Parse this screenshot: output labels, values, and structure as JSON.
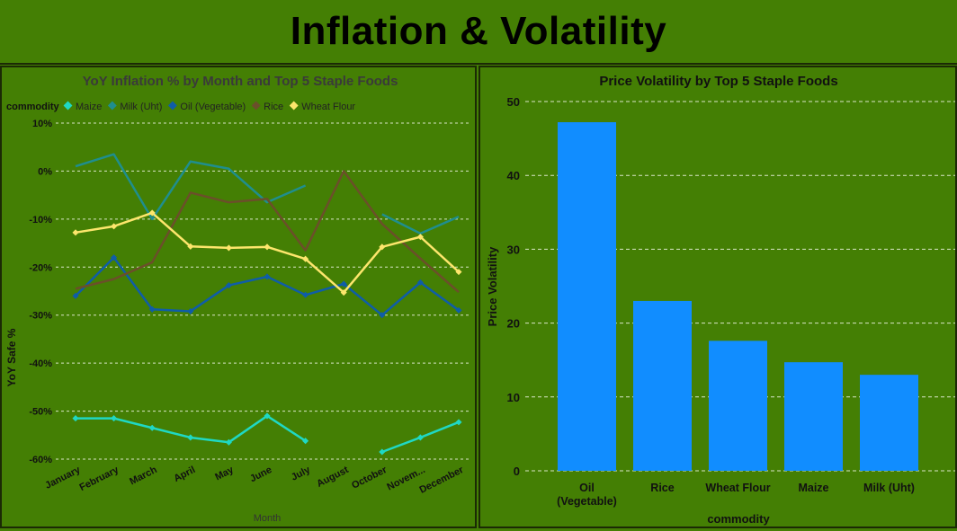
{
  "page_title": "Inflation & Volatility",
  "colors": {
    "background": "#447f04",
    "border": "#1b2a05",
    "bar": "#118dff",
    "grid": "#d8e6c6"
  },
  "chart_data": [
    {
      "type": "line",
      "title": "YoY Inflation % by Month and Top 5 Staple Foods",
      "xlabel": "Month",
      "ylabel": "YoY Safe %",
      "legend_title": "commodity",
      "legend_position": "top-left",
      "grid": true,
      "ylim": [
        -60,
        10
      ],
      "yticks": [
        10,
        0,
        -10,
        -20,
        -30,
        -40,
        -50,
        -60
      ],
      "ytick_labels": [
        "10%",
        "0%",
        "-10%",
        "-20%",
        "-30%",
        "-40%",
        "-50%",
        "-60%"
      ],
      "categories": [
        "January",
        "February",
        "March",
        "April",
        "May",
        "June",
        "July",
        "August",
        "October",
        "Novem...",
        "December"
      ],
      "series": [
        {
          "name": "Maize",
          "color": "#1fd8c4",
          "marker": true,
          "values": [
            -51.5,
            -51.5,
            -53.5,
            -55.5,
            -56.5,
            -51,
            -56.2,
            null,
            -58.5,
            -55.5,
            -52.3
          ]
        },
        {
          "name": "Milk (Uht)",
          "color": "#1f8e8e",
          "marker": false,
          "values": [
            1,
            3.5,
            -10,
            2,
            0.5,
            -6.5,
            -3,
            null,
            -9,
            -13,
            -9.5
          ]
        },
        {
          "name": "Oil (Vegetable)",
          "color": "#0f5da8",
          "marker": true,
          "values": [
            -26,
            -18,
            -28.8,
            -29.2,
            -23.8,
            -22,
            -25.8,
            -23.5,
            -30,
            -23.2,
            -29
          ]
        },
        {
          "name": "Rice",
          "color": "#6b4f2a",
          "marker": false,
          "values": [
            -24.5,
            -22.5,
            -19,
            -4.5,
            -6.5,
            -5.8,
            -16.5,
            0,
            -11,
            -18.2,
            -25.2
          ]
        },
        {
          "name": "Wheat Flour",
          "color": "#fde66c",
          "marker": true,
          "values": [
            -12.8,
            -11.5,
            -8.7,
            -15.7,
            -16,
            -15.8,
            -18.3,
            -25.3,
            -15.8,
            -13.7,
            -21
          ]
        }
      ]
    },
    {
      "type": "bar",
      "title": "Price Volatility by Top 5 Staple Foods",
      "xlabel": "commodity",
      "ylabel": "Price Volatility",
      "grid": true,
      "ylim": [
        0,
        50
      ],
      "yticks": [
        0,
        10,
        20,
        30,
        40,
        50
      ],
      "categories": [
        [
          "Oil",
          "(Vegetable)"
        ],
        [
          "Rice"
        ],
        [
          "Wheat Flour"
        ],
        [
          "Maize"
        ],
        [
          "Milk (Uht)"
        ]
      ],
      "values": [
        47.2,
        23,
        17.6,
        14.7,
        13
      ]
    }
  ]
}
